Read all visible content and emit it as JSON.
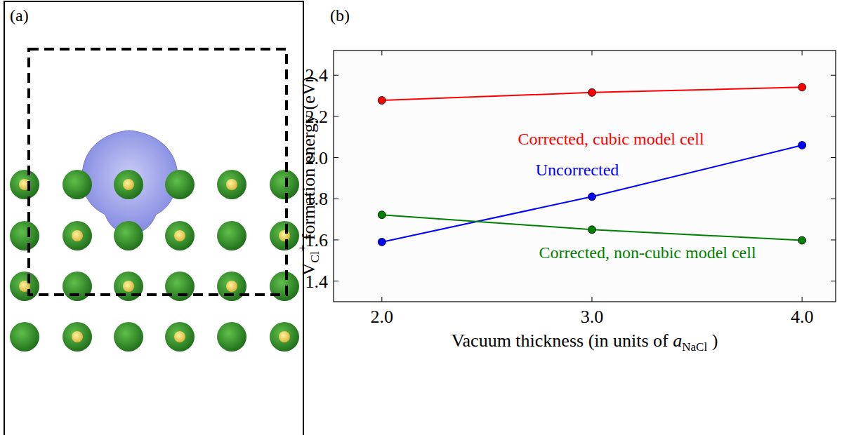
{
  "chart_data": {
    "type": "line",
    "panel_label": "(b)",
    "xlabel": [
      "Vacuum thickness (in units of ",
      "a",
      "NaCl",
      " )"
    ],
    "ylabel": [
      "V",
      "Cl",
      "+",
      " formation energy (eV)"
    ],
    "x": [
      2,
      3,
      4
    ],
    "xlim": [
      1.77,
      4.16
    ],
    "ylim": [
      1.3,
      2.52
    ],
    "xticks": [
      {
        "value": 2,
        "label": "2.0"
      },
      {
        "value": 3,
        "label": "3.0"
      },
      {
        "value": 4,
        "label": "4.0"
      }
    ],
    "yticks": [
      1.4,
      1.6,
      1.8,
      {
        "value": 2,
        "label": "2.0"
      },
      2.2,
      2.4
    ],
    "grid": false,
    "marker": "circle",
    "line_style": "solid",
    "series": [
      {
        "name": "Corrected, cubic model cell",
        "color": "#ff0000",
        "values": [
          2.278,
          2.316,
          2.342
        ]
      },
      {
        "name": "Uncorrected",
        "color": "#0000ff",
        "values": [
          1.59,
          1.81,
          2.06
        ]
      },
      {
        "name": "Corrected, non-cubic model cell",
        "color": "#008000",
        "values": [
          1.722,
          1.65,
          1.598
        ]
      }
    ]
  },
  "diagram": {
    "panel_label": "(a)"
  }
}
